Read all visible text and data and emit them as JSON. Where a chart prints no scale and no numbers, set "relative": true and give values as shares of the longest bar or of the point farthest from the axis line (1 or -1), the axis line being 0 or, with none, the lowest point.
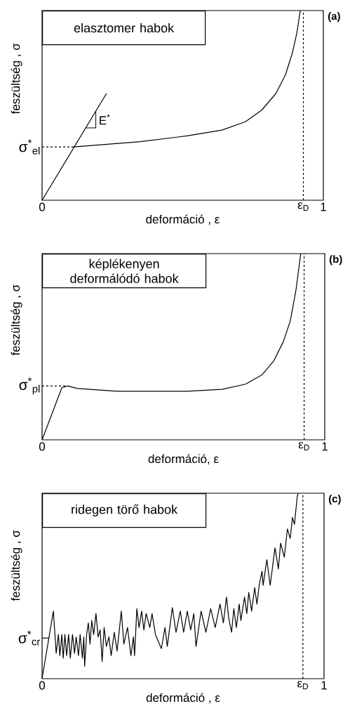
{
  "chart_data": [
    {
      "type": "line",
      "relative": true,
      "title": "elasztomer habok",
      "xlabel": "deformáció , ε",
      "ylabel": "feszültség , σ",
      "xlim": [
        0,
        1
      ],
      "xticks": [
        0,
        1
      ],
      "series": [
        {
          "color": "#000000",
          "x": [
            0,
            0.229
          ],
          "values": [
            0,
            0.563
          ]
        },
        {
          "color": "#000000",
          "x": [
            0.112,
            0.349,
            0.515,
            0.64,
            0.723,
            0.781,
            0.831,
            0.865,
            0.889,
            0.906,
            0.918
          ],
          "values": [
            0.281,
            0.309,
            0.339,
            0.37,
            0.414,
            0.475,
            0.562,
            0.66,
            0.772,
            0.883,
            1.0
          ]
        }
      ],
      "ref_lines": [
        {
          "axis": "x",
          "value": 0.929,
          "label": "ε$_{D}$",
          "line_style": "dashed"
        },
        {
          "axis": "y",
          "value": 0.281,
          "label": "σ$^{*}$$_{el}$",
          "line_style": "dashed"
        }
      ],
      "annotations": [
        {
          "text": "E$^{*}$",
          "x": 0.191,
          "y": 0.47
        },
        "(a)"
      ]
    },
    {
      "type": "line",
      "relative": true,
      "title": "képlékenyen deformálódó habok",
      "xlabel": "deformáció, ε",
      "ylabel": "feszültség , σ",
      "xlim": [
        0,
        1
      ],
      "xticks": [
        0,
        1
      ],
      "series": [
        {
          "color": "#000000",
          "x": [
            0,
            0.07,
            0.091,
            0.124,
            0.265,
            0.513,
            0.637,
            0.72,
            0.778,
            0.82,
            0.853,
            0.878,
            0.898,
            0.915
          ],
          "values": [
            0,
            0.28,
            0.289,
            0.276,
            0.261,
            0.261,
            0.271,
            0.299,
            0.349,
            0.425,
            0.525,
            0.638,
            0.802,
            1.0
          ]
        }
      ],
      "ref_lines": [
        {
          "axis": "x",
          "value": 0.927,
          "label": "ε$_{D}$",
          "line_style": "dashed"
        },
        {
          "axis": "y",
          "value": 0.289,
          "label": "σ$^{*}$$_{pl}$",
          "line_style": "dashed"
        }
      ],
      "annotations": [
        "(b)"
      ]
    },
    {
      "type": "line",
      "relative": true,
      "title": "ridegen törő habok",
      "xlabel": "deformáció , ε",
      "ylabel": "feszültség , σ",
      "xlim": [
        0,
        1
      ],
      "xticks": [
        0,
        1
      ],
      "series": [
        {
          "color": "#000000",
          "x": [
            0,
            0.04,
            0.05,
            0.058,
            0.063,
            0.07,
            0.075,
            0.081,
            0.087,
            0.094,
            0.1,
            0.108,
            0.115,
            0.121,
            0.129,
            0.135,
            0.143,
            0.148,
            0.151,
            0.158,
            0.164,
            0.17,
            0.176,
            0.183,
            0.191,
            0.199,
            0.206,
            0.213,
            0.22,
            0.228,
            0.237,
            0.245,
            0.256,
            0.266,
            0.281,
            0.29,
            0.303,
            0.315,
            0.324,
            0.328,
            0.336,
            0.344,
            0.353,
            0.361,
            0.369,
            0.382,
            0.39,
            0.402,
            0.423,
            0.436,
            0.444,
            0.462,
            0.475,
            0.49,
            0.502,
            0.515,
            0.527,
            0.538,
            0.546,
            0.564,
            0.581,
            0.598,
            0.614,
            0.631,
            0.643,
            0.654,
            0.662,
            0.672,
            0.68,
            0.689,
            0.699,
            0.705,
            0.718,
            0.726,
            0.733,
            0.743,
            0.754,
            0.762,
            0.77,
            0.78,
            0.784,
            0.797,
            0.809,
            0.826,
            0.838,
            0.846,
            0.859,
            0.87,
            0.88,
            0.888,
            0.895,
            0.905,
            0.909
          ],
          "values": [
            0,
            0.364,
            0.137,
            0.238,
            0.124,
            0.238,
            0.111,
            0.238,
            0.124,
            0.238,
            0.111,
            0.238,
            0.137,
            0.225,
            0.124,
            0.238,
            0.111,
            0.225,
            0.067,
            0.238,
            0.301,
            0.187,
            0.314,
            0.238,
            0.351,
            0.225,
            0.263,
            0.092,
            0.276,
            0.174,
            0.225,
            0.124,
            0.25,
            0.149,
            0.364,
            0.187,
            0.276,
            0.124,
            0.225,
            0.124,
            0.377,
            0.276,
            0.364,
            0.263,
            0.351,
            0.276,
            0.351,
            0.238,
            0.162,
            0.276,
            0.174,
            0.383,
            0.25,
            0.364,
            0.25,
            0.364,
            0.263,
            0.351,
            0.174,
            0.364,
            0.25,
            0.377,
            0.276,
            0.402,
            0.301,
            0.44,
            0.326,
            0.25,
            0.377,
            0.276,
            0.402,
            0.314,
            0.44,
            0.351,
            0.465,
            0.364,
            0.491,
            0.402,
            0.503,
            0.579,
            0.503,
            0.642,
            0.503,
            0.705,
            0.592,
            0.731,
            0.655,
            0.807,
            0.756,
            0.87,
            0.832,
            0.984,
            1.0
          ]
        }
      ],
      "ref_lines": [
        {
          "axis": "x",
          "value": 0.925,
          "label": "ε$_{D}$",
          "line_style": "dashed"
        },
        {
          "axis": "y",
          "value": 0.219,
          "label": "σ$^{*}$$_{cr}$",
          "line_style": "solid"
        }
      ],
      "annotations": [
        "(c)"
      ]
    }
  ]
}
